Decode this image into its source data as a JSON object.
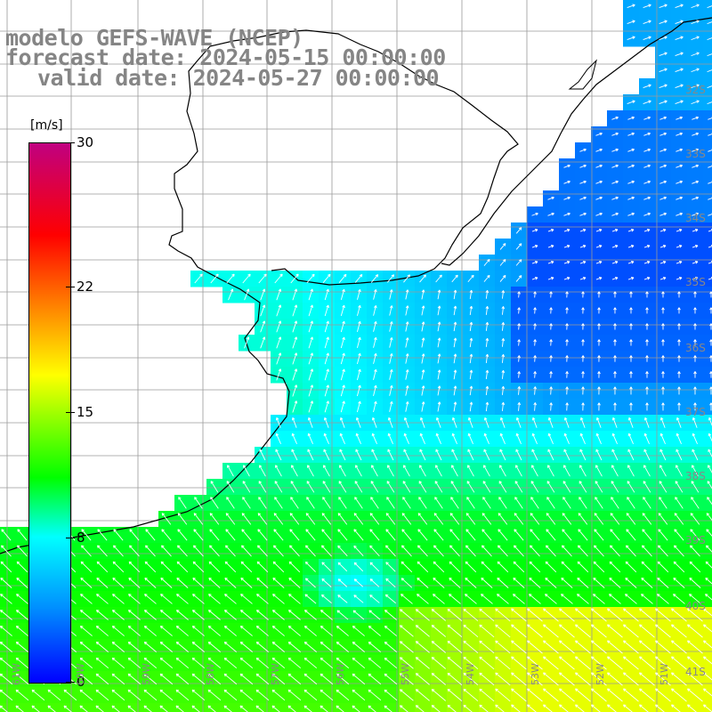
{
  "title": {
    "line1": "modelo GEFS-WAVE (NCEP)",
    "line2": "forecast date: 2024-05-15 00:00:00",
    "line3": "valid date: 2024-05-27 00:00:00"
  },
  "colorbar": {
    "unit": "[m/s]",
    "min": 0,
    "max": 30,
    "ticks": [
      "30",
      "22",
      "15",
      "8",
      "0"
    ],
    "tick_values": [
      30,
      22,
      15,
      8,
      0
    ],
    "colors": [
      "#0000ff",
      "#00a0ff",
      "#00ffff",
      "#00ff00",
      "#ffff00",
      "#ff8000",
      "#ff0000",
      "#c00080"
    ]
  },
  "map": {
    "lat_labels": [
      "32S",
      "33S",
      "34S",
      "35S",
      "36S",
      "37S",
      "38S",
      "39S",
      "40S",
      "41S"
    ],
    "lon_labels": [
      "61W",
      "60W",
      "59W",
      "58W",
      "57W",
      "56W",
      "55W",
      "54W",
      "53W",
      "52W",
      "51W"
    ],
    "land_color": "#ffffff",
    "grid_color": "#9a9a9a",
    "arrow_color": "#ffffff"
  }
}
